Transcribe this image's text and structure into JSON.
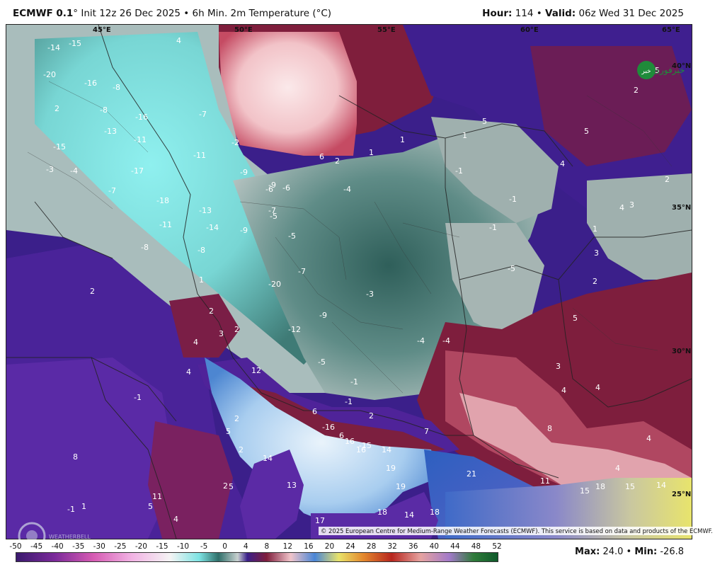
{
  "header": {
    "model": "ECMWF 0.1",
    "init": "° Init 12z 26 Dec 2025 • 6h Min. 2m Temperature (°C)",
    "hour_label": "Hour:",
    "hour_value": "114",
    "valid_label": "Valid:",
    "valid_value": "06z Wed 31 Dec 2025"
  },
  "map": {
    "lon_labels": [
      "45°E",
      "50°E",
      "55°E",
      "60°E",
      "65°E"
    ],
    "lat_labels": [
      "40°N",
      "35°N",
      "30°N",
      "25°N"
    ],
    "values": [
      "-14",
      "-15",
      "4",
      "-20",
      "-16",
      "-8",
      "2",
      "-8",
      "-13",
      "-16",
      "-15",
      "-11",
      "-3",
      "-4",
      "-17",
      "-7",
      "-18",
      "-13",
      "-11",
      "-14",
      "-9",
      "-8",
      "-8",
      "-5",
      "-5",
      "-9",
      "-9",
      "-6",
      "-11",
      "-4",
      "-7",
      "-20",
      "-3",
      "-9",
      "-12",
      "-5",
      "-4",
      "-4",
      "-1",
      "-1",
      "-1",
      "-1",
      "-1",
      "-5",
      "1",
      "2",
      "2",
      "3",
      "4",
      "2",
      "4",
      "12",
      "6",
      "2",
      "6",
      "6",
      "2",
      "1",
      "1",
      "5",
      "2",
      "5",
      "4",
      "5",
      "2",
      "4",
      "1",
      "3",
      "2",
      "5",
      "3",
      "5",
      "2",
      "8",
      "4",
      "4",
      "7",
      "8",
      "11",
      "2",
      "1",
      "-1",
      "5",
      "4",
      "5",
      "14",
      "13",
      "19",
      "19",
      "18",
      "14",
      "18",
      "17",
      "16",
      "14",
      "21",
      "11",
      "15",
      "18",
      "15",
      "14",
      "16",
      "-15",
      "-16",
      "-6",
      "-7",
      "-7",
      "-2",
      "-1",
      "1",
      "3",
      "4",
      "4",
      "2"
    ]
  },
  "colorbar": {
    "ticks": [
      "-50",
      "-45",
      "-40",
      "-35",
      "-30",
      "-25",
      "-20",
      "-15",
      "-10",
      "-5",
      "0",
      "4",
      "8",
      "12",
      "16",
      "20",
      "24",
      "28",
      "32",
      "36",
      "40",
      "44",
      "48",
      "52"
    ]
  },
  "stats": {
    "max_label": "Max:",
    "max_value": "24.0",
    "min_label": "Min:",
    "min_value": "-26.8"
  },
  "copyright": "© 2025 European Centre for Medium-Range Weather Forecasts (ECMWF). This service is based on data and products of the ECMWF.",
  "logo_text": "خبرفوری",
  "watermark_text": "WEATHERBELL",
  "colors": {
    "cold_deep": "#3a1e8c",
    "cold_mid": "#5a2da0",
    "cool_teal": "#6fd3d3",
    "cool_dark": "#2f5f5a",
    "neutral": "#b9c4c3",
    "warm": "#8b1f3a",
    "warm_light": "#e9a9ae",
    "sea_blue": "#3e86d6",
    "hot_yellow": "#e7e36a"
  }
}
